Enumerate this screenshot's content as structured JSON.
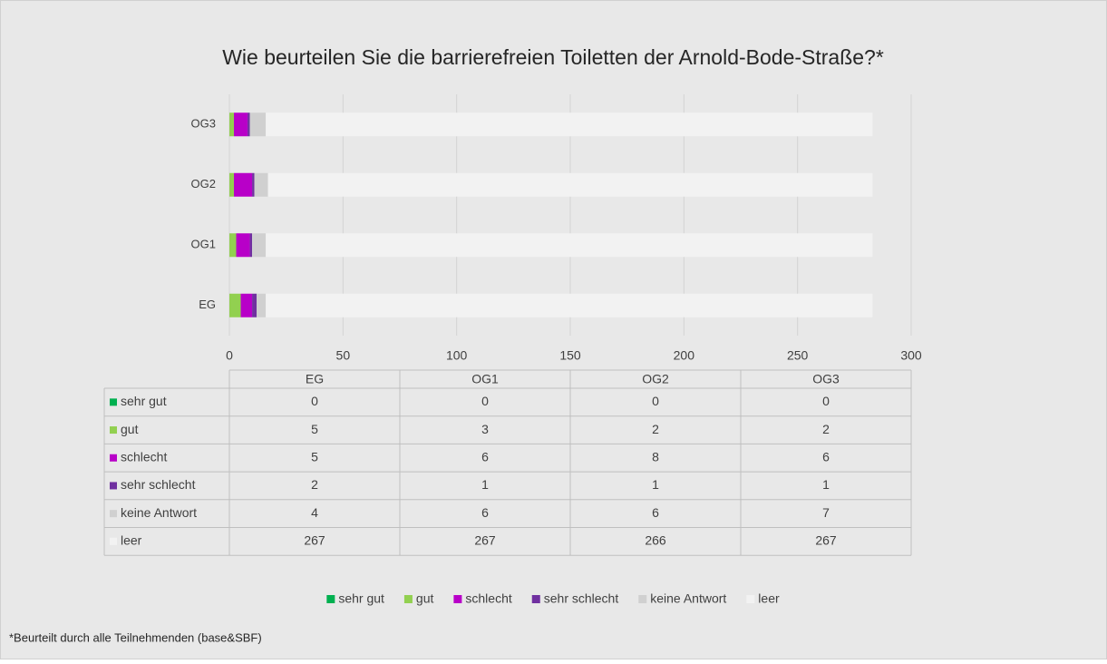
{
  "chart_data": {
    "type": "stacked-bar-horizontal",
    "title": "Wie beurteilen Sie die barrierefreien Toiletten der Arnold-Bode-Straße?*",
    "categories": [
      "EG",
      "OG1",
      "OG2",
      "OG3"
    ],
    "series": [
      {
        "name": "sehr gut",
        "color": "#00b050",
        "values": [
          0,
          0,
          0,
          0
        ]
      },
      {
        "name": "gut",
        "color": "#92d050",
        "values": [
          5,
          3,
          2,
          2
        ]
      },
      {
        "name": "schlecht",
        "color": "#b800c8",
        "values": [
          5,
          6,
          8,
          6
        ]
      },
      {
        "name": "sehr schlecht",
        "color": "#7030a0",
        "values": [
          2,
          1,
          1,
          1
        ]
      },
      {
        "name": "keine Antwort",
        "color": "#d0d0d0",
        "values": [
          4,
          6,
          6,
          7
        ]
      },
      {
        "name": "leer",
        "color": "#f2f2f2",
        "values": [
          267,
          267,
          266,
          267
        ]
      }
    ],
    "xlim": [
      0,
      300
    ],
    "xticks": [
      0,
      50,
      100,
      150,
      200,
      250,
      300
    ],
    "grid": true,
    "legend": "bottom",
    "footnote": "*Beurteilt durch alle Teilnehmenden (base&SBF)"
  }
}
